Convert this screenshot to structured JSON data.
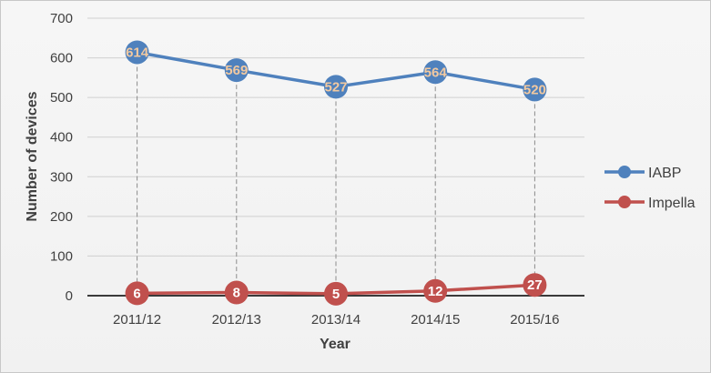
{
  "chart_data": {
    "type": "line",
    "xlabel": "Year",
    "ylabel": "Number of devices",
    "ylim": [
      0,
      700
    ],
    "yticks": [
      "0",
      "100",
      "200",
      "300",
      "400",
      "500",
      "600",
      "700"
    ],
    "grid": true,
    "legend_position": "right",
    "categories": [
      "2011/12",
      "2012/13",
      "2013/14",
      "2014/15",
      "2015/16"
    ],
    "series": [
      {
        "name": "IABP",
        "values": [
          614,
          569,
          527,
          564,
          520
        ],
        "color": "#4f81bd",
        "label_color": "#f2c9a0"
      },
      {
        "name": "Impella",
        "values": [
          6,
          8,
          5,
          12,
          27
        ],
        "color": "#c0504d",
        "label_color": "#ffffff"
      }
    ]
  }
}
